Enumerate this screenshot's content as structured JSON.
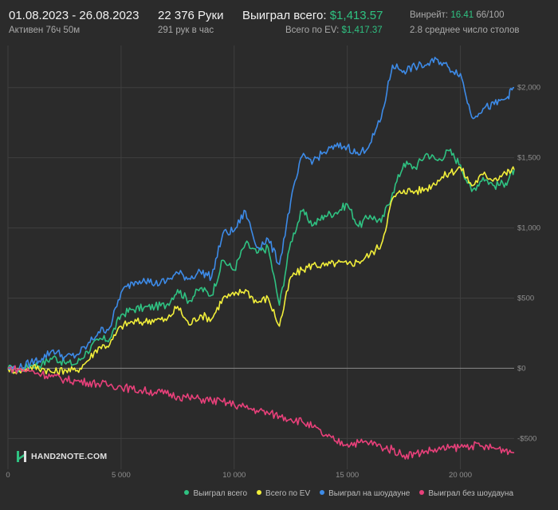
{
  "header": {
    "date_range": "01.08.2023 - 26.08.2023",
    "active_time": "Активен 76ч 50м",
    "hands": "22 376 Руки",
    "hands_per_hour": "291 рук в час",
    "won_total_label": "Выиграл всего:",
    "won_total_value": "$1,413.57",
    "ev_total_label": "Всего по EV:",
    "ev_total_value": "$1,417.37",
    "winrate_label": "Винрейт:",
    "winrate_value": "16.41",
    "winrate_suffix": "66/100",
    "avg_tables": "2.8 среднее число столов"
  },
  "logo": {
    "text": "HAND2NOTE.COM"
  },
  "colors": {
    "background": "#2b2b2b",
    "grid": "#3f3f3f",
    "zero_line": "#8a8a8a",
    "won_total": "#2fc282",
    "ev_total": "#f2ef3a",
    "showdown": "#3d8be8",
    "no_showdown": "#e8407a"
  },
  "chart_data": {
    "type": "line",
    "xlabel": "",
    "ylabel": "",
    "xlim": [
      0,
      22376
    ],
    "ylim": [
      -720,
      2300
    ],
    "x_ticks": [
      0,
      5000,
      10000,
      15000,
      20000
    ],
    "x_tick_labels": [
      "0",
      "5 000",
      "10 000",
      "15 000",
      "20 000"
    ],
    "y_ticks": [
      2000,
      1500,
      1000,
      500,
      0,
      -500
    ],
    "y_tick_labels": [
      "$2,000",
      "$1,500",
      "$1,000",
      "$500",
      "$0",
      "-$500"
    ],
    "grid": true,
    "legend_position": "bottom-right",
    "series": [
      {
        "name": "Выиграл всего",
        "color": "#2fc282",
        "x": [
          0,
          500,
          1000,
          1500,
          2000,
          2500,
          3000,
          3500,
          4000,
          4500,
          5000,
          5500,
          6000,
          6500,
          7000,
          7500,
          8000,
          8500,
          9000,
          9500,
          10000,
          10500,
          11000,
          11500,
          12000,
          12500,
          13000,
          13500,
          14000,
          14500,
          15000,
          15500,
          16000,
          16500,
          17000,
          17500,
          18000,
          18500,
          19000,
          19500,
          20000,
          20500,
          21000,
          21500,
          22000,
          22376
        ],
        "values": [
          0,
          -20,
          20,
          30,
          80,
          40,
          30,
          120,
          200,
          210,
          380,
          420,
          430,
          440,
          450,
          560,
          480,
          570,
          520,
          770,
          700,
          890,
          820,
          860,
          450,
          900,
          1120,
          1020,
          1090,
          1110,
          1170,
          1010,
          1090,
          1040,
          1250,
          1460,
          1430,
          1530,
          1480,
          1550,
          1450,
          1260,
          1360,
          1300,
          1320,
          1415
        ]
      },
      {
        "name": "Всего по EV",
        "color": "#f2ef3a",
        "x": [
          0,
          500,
          1000,
          1500,
          2000,
          2500,
          3000,
          3500,
          4000,
          4500,
          5000,
          5500,
          6000,
          6500,
          7000,
          7500,
          8000,
          8500,
          9000,
          9500,
          10000,
          10500,
          11000,
          11500,
          12000,
          12500,
          13000,
          13500,
          14000,
          14500,
          15000,
          15500,
          16000,
          16500,
          17000,
          17500,
          18000,
          18500,
          19000,
          19500,
          20000,
          20500,
          21000,
          21500,
          22000,
          22376
        ],
        "values": [
          0,
          -20,
          10,
          0,
          -30,
          -10,
          -20,
          50,
          150,
          170,
          300,
          330,
          330,
          350,
          340,
          440,
          310,
          380,
          350,
          500,
          520,
          560,
          470,
          500,
          300,
          650,
          700,
          740,
          730,
          750,
          740,
          760,
          810,
          880,
          1210,
          1270,
          1260,
          1280,
          1340,
          1390,
          1430,
          1300,
          1380,
          1350,
          1390,
          1415
        ]
      },
      {
        "name": "Выиграл на шоудауне",
        "color": "#3d8be8",
        "x": [
          0,
          500,
          1000,
          1500,
          2000,
          2500,
          3000,
          3500,
          4000,
          4500,
          5000,
          5500,
          6000,
          6500,
          7000,
          7500,
          8000,
          8500,
          9000,
          9500,
          10000,
          10500,
          11000,
          11500,
          12000,
          12500,
          13000,
          13500,
          14000,
          14500,
          15000,
          15500,
          16000,
          16500,
          17000,
          17500,
          18000,
          18500,
          19000,
          19500,
          20000,
          20500,
          21000,
          21500,
          22000,
          22376
        ],
        "values": [
          0,
          0,
          40,
          70,
          130,
          80,
          90,
          160,
          260,
          290,
          540,
          610,
          640,
          600,
          620,
          680,
          640,
          690,
          650,
          960,
          980,
          1120,
          860,
          920,
          740,
          1190,
          1510,
          1480,
          1540,
          1580,
          1580,
          1520,
          1600,
          1780,
          2160,
          2120,
          2150,
          2160,
          2200,
          2140,
          2100,
          1790,
          1850,
          1880,
          1920,
          2000
        ]
      },
      {
        "name": "Выиграл без шоудауна",
        "color": "#e8407a",
        "x": [
          0,
          500,
          1000,
          1500,
          2000,
          2500,
          3000,
          3500,
          4000,
          4500,
          5000,
          5500,
          6000,
          6500,
          7000,
          7500,
          8000,
          8500,
          9000,
          9500,
          10000,
          10500,
          11000,
          11500,
          12000,
          12500,
          13000,
          13500,
          14000,
          14500,
          15000,
          15500,
          16000,
          16500,
          17000,
          17500,
          18000,
          18500,
          19000,
          19500,
          20000,
          20500,
          21000,
          21500,
          22000,
          22376
        ],
        "values": [
          0,
          -10,
          -20,
          -40,
          -60,
          -80,
          -90,
          -100,
          -110,
          -120,
          -130,
          -150,
          -160,
          -170,
          -180,
          -200,
          -210,
          -220,
          -230,
          -240,
          -260,
          -280,
          -300,
          -320,
          -340,
          -360,
          -380,
          -420,
          -480,
          -520,
          -540,
          -530,
          -530,
          -560,
          -580,
          -620,
          -610,
          -590,
          -580,
          -570,
          -560,
          -550,
          -560,
          -570,
          -580,
          -600
        ]
      }
    ]
  }
}
